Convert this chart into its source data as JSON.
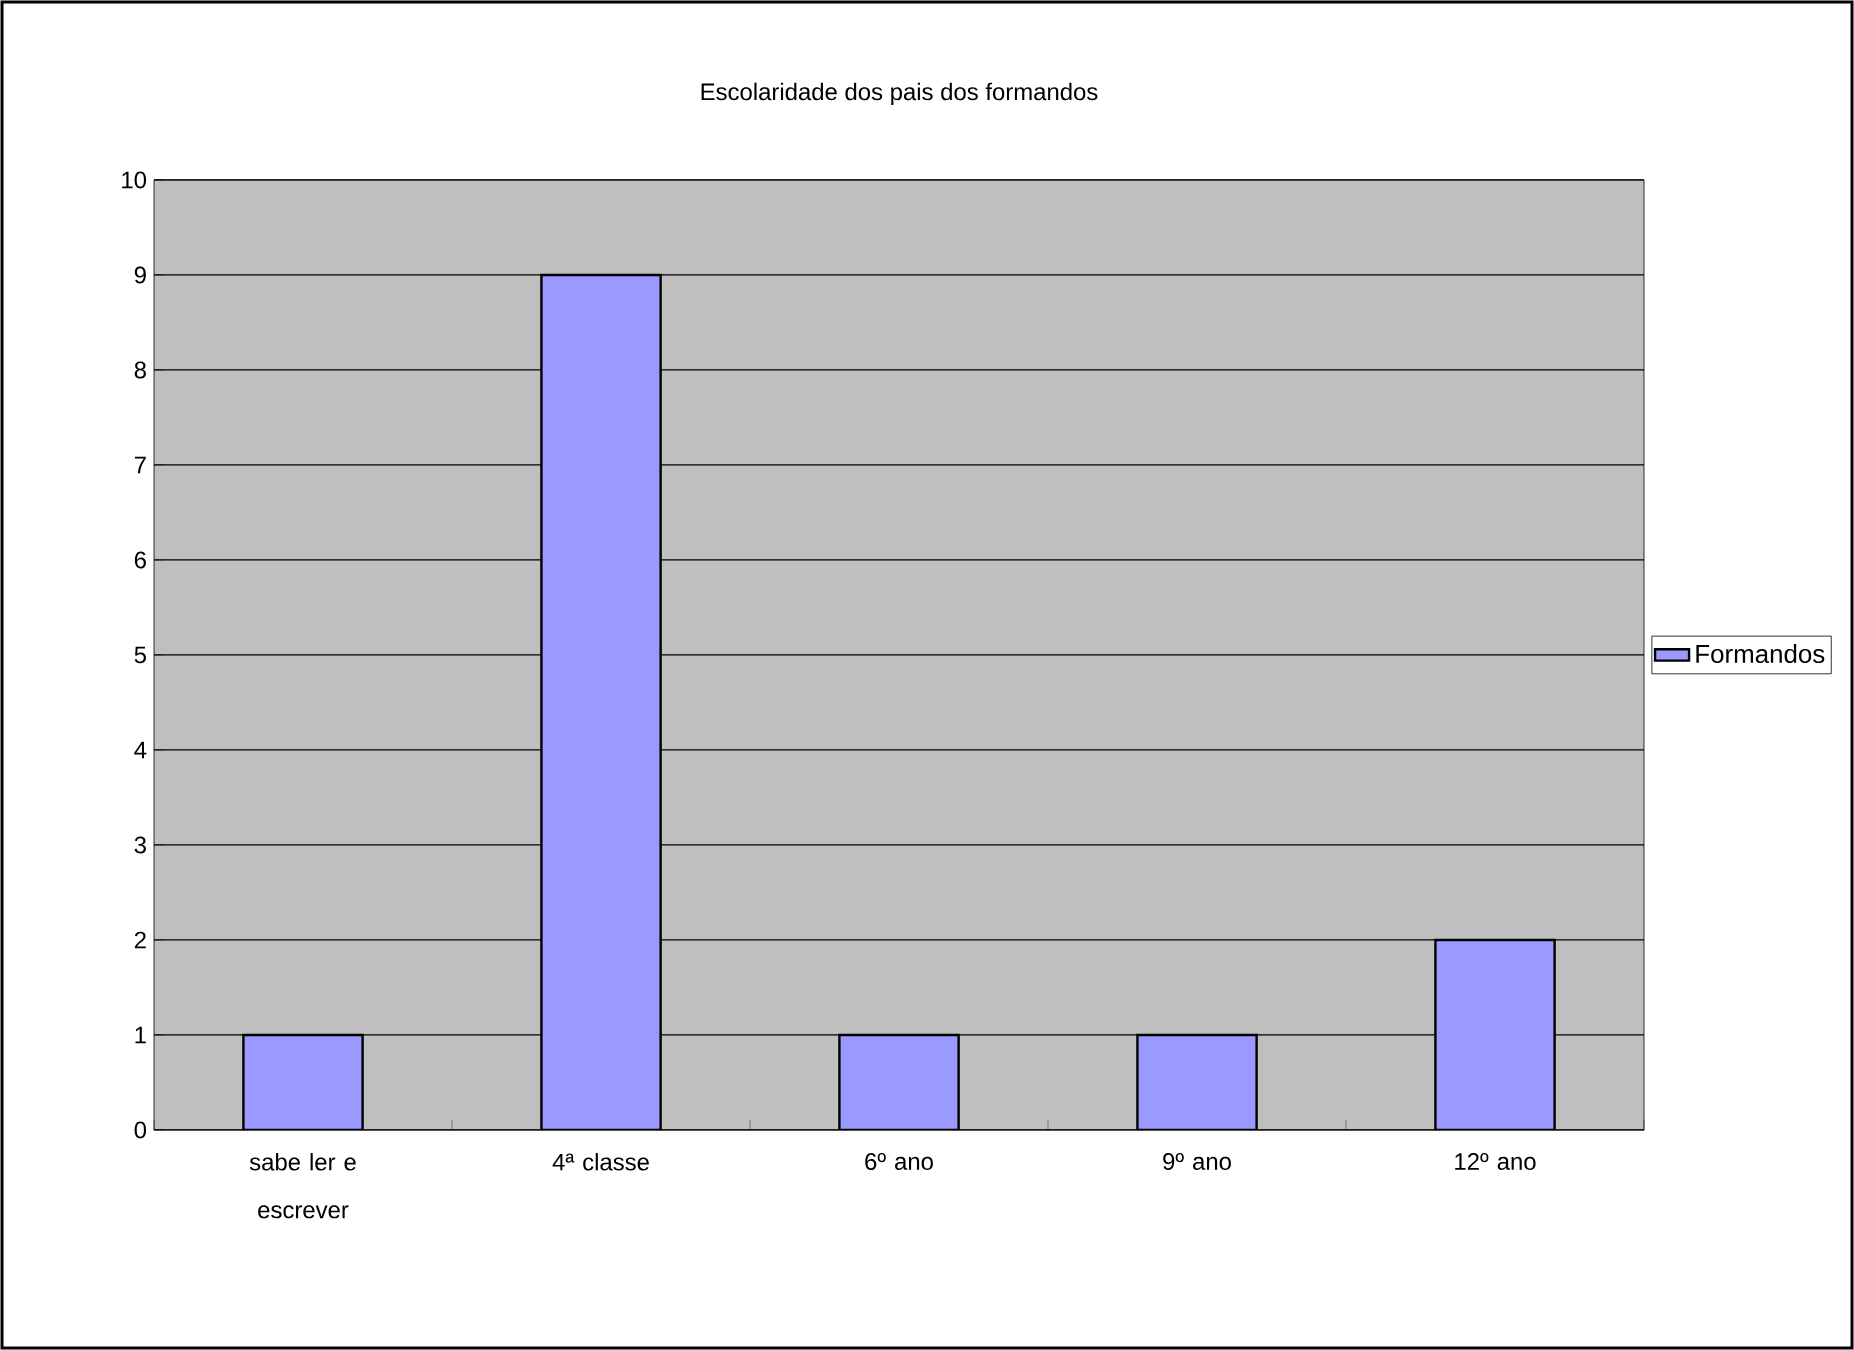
{
  "chart_data": {
    "type": "bar",
    "title": "Escolaridade dos pais dos formandos",
    "categories": [
      "sabe ler e escrever",
      "4ª classe",
      "6º ano",
      "9º ano",
      "12º ano"
    ],
    "series": [
      {
        "name": "Formandos",
        "color": "#9999ff",
        "values": [
          1,
          9,
          1,
          1,
          2
        ]
      }
    ],
    "ylim": [
      0,
      10
    ],
    "yticks": [
      0,
      1,
      2,
      3,
      4,
      5,
      6,
      7,
      8,
      9,
      10
    ],
    "grid": "y",
    "legend": "right"
  }
}
